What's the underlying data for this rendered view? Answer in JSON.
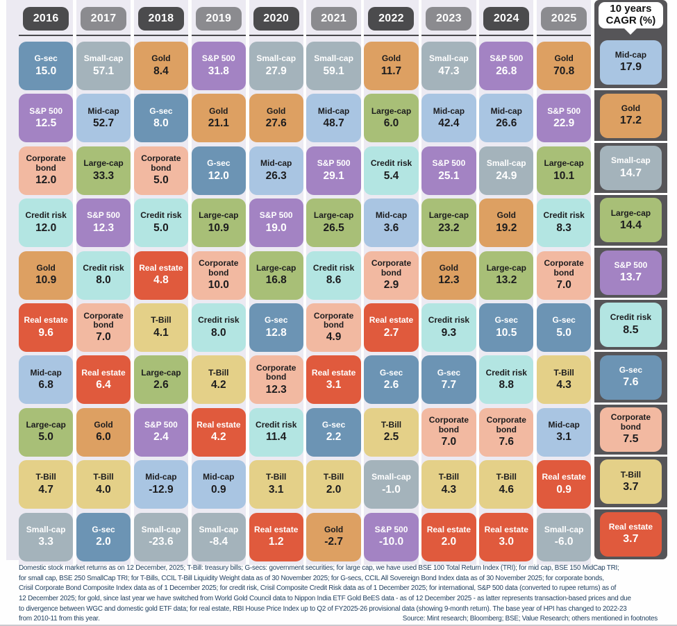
{
  "cagr_header": {
    "line1": "10 years",
    "line2": "CAGR (%)"
  },
  "palette": {
    "board_bg": "#eceaf2",
    "header_dark": "#4b4b4d",
    "header_light": "#8b8b8f",
    "strip_bg": "#565558",
    "underline": "#48484b",
    "footnote_text": "#21405f"
  },
  "asset_classes": {
    "G-sec": {
      "color": "#6c94b4",
      "text": "#ffffff"
    },
    "Small-cap": {
      "color": "#a4b3bb",
      "text": "#ffffff"
    },
    "Mid-cap": {
      "color": "#a9c5e2",
      "text": "#1c1c1e"
    },
    "Large-cap": {
      "color": "#a8bf77",
      "text": "#1c1c1e"
    },
    "S&P 500": {
      "color": "#a383c3",
      "text": "#ffffff"
    },
    "Gold": {
      "color": "#dda062",
      "text": "#1c1c1e"
    },
    "Corporate bond": {
      "color": "#f2b9a1",
      "text": "#1c1c1e"
    },
    "Credit risk": {
      "color": "#b3e5e2",
      "text": "#1c1c1e"
    },
    "Real estate": {
      "color": "#e05a3d",
      "text": "#ffffff"
    },
    "T-Bill": {
      "color": "#e4d088",
      "text": "#1c1c1e"
    }
  },
  "chart_data": {
    "type": "table",
    "title": "Asset class returns by year (%), ranked best to worst",
    "legend_position": "none",
    "columns": [
      {
        "year": "2016",
        "cells": [
          {
            "asset": "G-sec",
            "value": "15.0"
          },
          {
            "asset": "S&P 500",
            "value": "12.5"
          },
          {
            "asset": "Corporate bond",
            "value": "12.0"
          },
          {
            "asset": "Credit risk",
            "value": "12.0"
          },
          {
            "asset": "Gold",
            "value": "10.9"
          },
          {
            "asset": "Real estate",
            "value": "9.6"
          },
          {
            "asset": "Mid-cap",
            "value": "6.8"
          },
          {
            "asset": "Large-cap",
            "value": "5.0"
          },
          {
            "asset": "T-Bill",
            "value": "4.7"
          },
          {
            "asset": "Small-cap",
            "value": "3.3"
          }
        ]
      },
      {
        "year": "2017",
        "cells": [
          {
            "asset": "Small-cap",
            "value": "57.1"
          },
          {
            "asset": "Mid-cap",
            "value": "52.7"
          },
          {
            "asset": "Large-cap",
            "value": "33.3"
          },
          {
            "asset": "S&P 500",
            "value": "12.3"
          },
          {
            "asset": "Credit risk",
            "value": "8.0"
          },
          {
            "asset": "Corporate bond",
            "value": "7.0"
          },
          {
            "asset": "Real estate",
            "value": "6.4"
          },
          {
            "asset": "Gold",
            "value": "6.0"
          },
          {
            "asset": "T-Bill",
            "value": "4.0"
          },
          {
            "asset": "G-sec",
            "value": "2.0"
          }
        ]
      },
      {
        "year": "2018",
        "cells": [
          {
            "asset": "Gold",
            "value": "8.4"
          },
          {
            "asset": "G-sec",
            "value": "8.0"
          },
          {
            "asset": "Corporate bond",
            "value": "5.0"
          },
          {
            "asset": "Credit risk",
            "value": "5.0"
          },
          {
            "asset": "Real estate",
            "value": "4.8"
          },
          {
            "asset": "T-Bill",
            "value": "4.1"
          },
          {
            "asset": "Large-cap",
            "value": "2.6"
          },
          {
            "asset": "S&P 500",
            "value": "2.4"
          },
          {
            "asset": "Mid-cap",
            "value": "-12.9"
          },
          {
            "asset": "Small-cap",
            "value": "-23.6"
          }
        ]
      },
      {
        "year": "2019",
        "cells": [
          {
            "asset": "S&P 500",
            "value": "31.8"
          },
          {
            "asset": "Gold",
            "value": "21.1"
          },
          {
            "asset": "G-sec",
            "value": "12.0"
          },
          {
            "asset": "Large-cap",
            "value": "10.9"
          },
          {
            "asset": "Corporate bond",
            "value": "10.0"
          },
          {
            "asset": "Credit risk",
            "value": "8.0"
          },
          {
            "asset": "T-Bill",
            "value": "4.2"
          },
          {
            "asset": "Real estate",
            "value": "4.2"
          },
          {
            "asset": "Mid-cap",
            "value": "0.9"
          },
          {
            "asset": "Small-cap",
            "value": "-8.4"
          }
        ]
      },
      {
        "year": "2020",
        "cells": [
          {
            "asset": "Small-cap",
            "value": "27.9"
          },
          {
            "asset": "Gold",
            "value": "27.6"
          },
          {
            "asset": "Mid-cap",
            "value": "26.3"
          },
          {
            "asset": "S&P 500",
            "value": "19.0"
          },
          {
            "asset": "Large-cap",
            "value": "16.8"
          },
          {
            "asset": "G-sec",
            "value": "12.8"
          },
          {
            "asset": "Corporate bond",
            "value": "12.3"
          },
          {
            "asset": "Credit risk",
            "value": "11.4"
          },
          {
            "asset": "T-Bill",
            "value": "3.1"
          },
          {
            "asset": "Real estate",
            "value": "1.2"
          }
        ]
      },
      {
        "year": "2021",
        "cells": [
          {
            "asset": "Small-cap",
            "value": "59.1"
          },
          {
            "asset": "Mid-cap",
            "value": "48.7"
          },
          {
            "asset": "S&P 500",
            "value": "29.1"
          },
          {
            "asset": "Large-cap",
            "value": "26.5"
          },
          {
            "asset": "Credit risk",
            "value": "8.6"
          },
          {
            "asset": "Corporate bond",
            "value": "4.9"
          },
          {
            "asset": "Real estate",
            "value": "3.1"
          },
          {
            "asset": "G-sec",
            "value": "2.2"
          },
          {
            "asset": "T-Bill",
            "value": "2.0"
          },
          {
            "asset": "Gold",
            "value": "-2.7"
          }
        ]
      },
      {
        "year": "2022",
        "cells": [
          {
            "asset": "Gold",
            "value": "11.7"
          },
          {
            "asset": "Large-cap",
            "value": "6.0"
          },
          {
            "asset": "Credit risk",
            "value": "5.4"
          },
          {
            "asset": "Mid-cap",
            "value": "3.6"
          },
          {
            "asset": "Corporate bond",
            "value": "2.9"
          },
          {
            "asset": "Real estate",
            "value": "2.7"
          },
          {
            "asset": "G-sec",
            "value": "2.6"
          },
          {
            "asset": "T-Bill",
            "value": "2.5"
          },
          {
            "asset": "Small-cap",
            "value": "-1.0"
          },
          {
            "asset": "S&P 500",
            "value": "-10.0"
          }
        ]
      },
      {
        "year": "2023",
        "cells": [
          {
            "asset": "Small-cap",
            "value": "47.3"
          },
          {
            "asset": "Mid-cap",
            "value": "42.4"
          },
          {
            "asset": "S&P 500",
            "value": "25.1"
          },
          {
            "asset": "Large-cap",
            "value": "23.2"
          },
          {
            "asset": "Gold",
            "value": "12.3"
          },
          {
            "asset": "Credit risk",
            "value": "9.3"
          },
          {
            "asset": "G-sec",
            "value": "7.7"
          },
          {
            "asset": "Corporate bond",
            "value": "7.0"
          },
          {
            "asset": "T-Bill",
            "value": "4.3"
          },
          {
            "asset": "Real estate",
            "value": "2.0"
          }
        ]
      },
      {
        "year": "2024",
        "cells": [
          {
            "asset": "S&P 500",
            "value": "26.8"
          },
          {
            "asset": "Mid-cap",
            "value": "26.6"
          },
          {
            "asset": "Small-cap",
            "value": "24.9"
          },
          {
            "asset": "Gold",
            "value": "19.2"
          },
          {
            "asset": "Large-cap",
            "value": "13.2"
          },
          {
            "asset": "G-sec",
            "value": "10.5"
          },
          {
            "asset": "Credit risk",
            "value": "8.8"
          },
          {
            "asset": "Corporate bond",
            "value": "7.6"
          },
          {
            "asset": "T-Bill",
            "value": "4.6"
          },
          {
            "asset": "Real estate",
            "value": "3.0"
          }
        ]
      },
      {
        "year": "2025",
        "cells": [
          {
            "asset": "Gold",
            "value": "70.8"
          },
          {
            "asset": "S&P 500",
            "value": "22.9"
          },
          {
            "asset": "Large-cap",
            "value": "10.1"
          },
          {
            "asset": "Credit risk",
            "value": "8.3"
          },
          {
            "asset": "Corporate bond",
            "value": "7.0"
          },
          {
            "asset": "G-sec",
            "value": "5.0"
          },
          {
            "asset": "T-Bill",
            "value": "4.3"
          },
          {
            "asset": "Mid-cap",
            "value": "3.1"
          },
          {
            "asset": "Real estate",
            "value": "0.9"
          },
          {
            "asset": "Small-cap",
            "value": "-6.0"
          }
        ]
      },
      {
        "year": "10 years CAGR (%)",
        "cells": [
          {
            "asset": "Mid-cap",
            "value": "17.9"
          },
          {
            "asset": "Gold",
            "value": "17.2"
          },
          {
            "asset": "Small-cap",
            "value": "14.7"
          },
          {
            "asset": "Large-cap",
            "value": "14.4"
          },
          {
            "asset": "S&P 500",
            "value": "13.7"
          },
          {
            "asset": "Credit risk",
            "value": "8.5"
          },
          {
            "asset": "G-sec",
            "value": "7.6"
          },
          {
            "asset": "Corporate bond",
            "value": "7.5"
          },
          {
            "asset": "T-Bill",
            "value": "3.7"
          },
          {
            "asset": "Real estate",
            "value": "3.7"
          }
        ]
      }
    ]
  },
  "footnote": {
    "lines": [
      "Domestic stock market returns as on 12 December, 2025; T-Bill: treasury bills; G-secs: government securities; for large cap, we have used BSE 100 Total Return Index (TRI); for mid cap, BSE 150 MidCap TRI;",
      "for small cap, BSE 250 SmallCap TRI; for T-Bills, CCIL T-Bill Liquidity Weight data as of 30 November 2025; for G-secs, CCIL All Sovereign Bond Index data as of 30 November 2025; for corporate bonds,",
      "Crisil Corporate Bond Composite Index data as of 1 December 2025; for credit risk, Crisil Composite Credit Risk data as of 1 December 2025; for international, S&P 500 data (converted to rupee returns) as of",
      "12 December 2025; for gold, since last year we have switched from World Gold Council data to Nippon India ETF Gold BeES data - as of 12 December 2025 - as latter represents transaction-based prices and due",
      "to divergence between WGC and domestic gold ETF data; for real estate, RBI House Price Index up to Q2 of FY2025-26 provisional data (showing 9-month return). The base year of HPI has changed to 2022-23",
      "from 2010-11 from this year."
    ],
    "source": "Source: Mint research; Bloomberg; BSE; Value Research; others mentioned in footnotes"
  }
}
